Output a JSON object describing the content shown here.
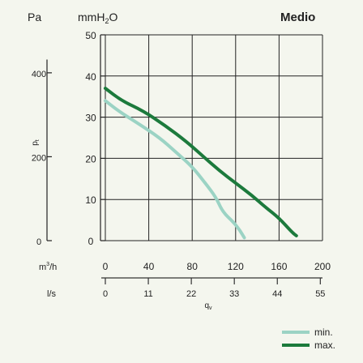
{
  "chart_data": {
    "type": "line",
    "title": "Medio",
    "units": {
      "pa": "Pa",
      "mmh2o_base": "mmH",
      "mmh2o_sub": "2",
      "mmh2o_tail": "O",
      "m3h_base": "m",
      "m3h_sup": "3",
      "m3h_tail": "/h",
      "ls": "l/s"
    },
    "ylabel_main": "p",
    "ylabel_sub": "t",
    "xlabel_main": "q",
    "xlabel_sub": "v",
    "xlim": [
      0,
      200
    ],
    "ylim": [
      0,
      50
    ],
    "mmh2o_ticks": [
      "0",
      "10",
      "20",
      "30",
      "40",
      "50"
    ],
    "pa_ticks": [
      "0",
      "200",
      "400"
    ],
    "m3h_ticks": [
      "0",
      "40",
      "80",
      "120",
      "160",
      "200"
    ],
    "ls_ticks": [
      "0",
      "11",
      "22",
      "33",
      "44",
      "55"
    ],
    "series": [
      {
        "name": "min.",
        "color": "#9bd3c4",
        "x": [
          0,
          12,
          30,
          50,
          65,
          80,
          92,
          102,
          108,
          118,
          124,
          128
        ],
        "y": [
          34,
          31.5,
          28.5,
          25,
          21.5,
          18,
          14,
          10.5,
          7,
          4.5,
          2.5,
          0.7
        ]
      },
      {
        "name": "max.",
        "color": "#1c7a3c",
        "x": [
          0,
          15,
          35,
          55,
          75,
          90,
          105,
          120,
          135,
          148,
          160,
          172,
          176
        ],
        "y": [
          37,
          34,
          31.5,
          28,
          24,
          20.5,
          17,
          14,
          11,
          8,
          5.5,
          2,
          1.2
        ]
      }
    ],
    "legend": [
      "min.",
      "max."
    ],
    "legend_position": "bottom-right"
  }
}
